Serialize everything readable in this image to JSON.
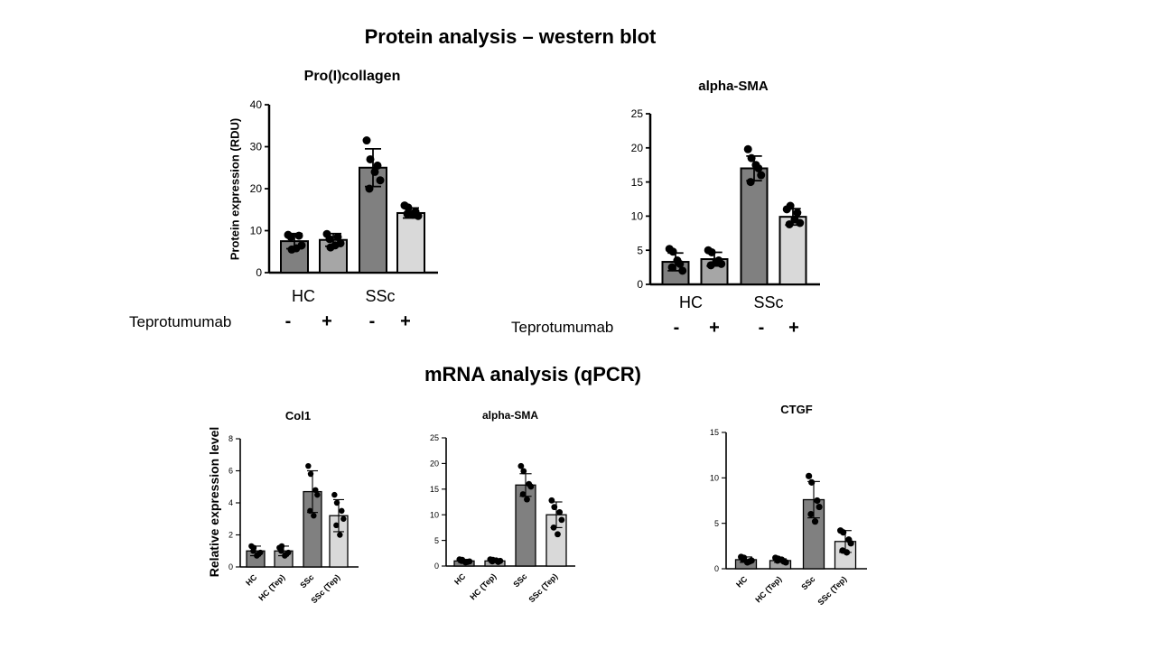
{
  "titles": {
    "protein_section": "Protein analysis – western blot",
    "mrna_section": "mRNA analysis (qPCR)"
  },
  "protein_labels": {
    "treatment": "Teprotumumab",
    "groups": [
      "HC",
      "SSc"
    ],
    "signs": [
      "-",
      "+",
      "-",
      "+"
    ]
  },
  "colors": {
    "bar_dark": "#808080",
    "bar_mid": "#a6a6a6",
    "bar_light": "#d9d9d9",
    "dot": "#000000"
  },
  "chart_data": [
    {
      "type": "bar",
      "title": "Pro(I)collagen",
      "ylabel": "Protein expression (RDU)",
      "ylim": [
        0,
        40
      ],
      "yticks": [
        0,
        10,
        20,
        30,
        40
      ],
      "categories": [
        "HC -",
        "HC +",
        "SSc -",
        "SSc +"
      ],
      "values": [
        7.5,
        7.8,
        25.0,
        14.2
      ],
      "errors": [
        1.8,
        1.5,
        4.5,
        1.2
      ],
      "points": [
        [
          9,
          5.5,
          8.8,
          6.5,
          8.5,
          5.8
        ],
        [
          9.2,
          6.0,
          8.5,
          7.0,
          8.0,
          6.5
        ],
        [
          31.5,
          27.0,
          25.5,
          22.0,
          20.0,
          24.0
        ],
        [
          16,
          15.5,
          14.5,
          13.5,
          14.0,
          13.8
        ]
      ]
    },
    {
      "type": "bar",
      "title": "alpha-SMA",
      "ylabel": "",
      "ylim": [
        0,
        25
      ],
      "yticks": [
        0,
        5,
        10,
        15,
        20,
        25
      ],
      "categories": [
        "HC -",
        "HC +",
        "SSc -",
        "SSc +"
      ],
      "values": [
        3.3,
        3.7,
        17.0,
        9.9
      ],
      "errors": [
        1.3,
        1.0,
        1.8,
        1.2
      ],
      "points": [
        [
          5.2,
          4.8,
          3.0,
          2.0,
          2.5,
          3.5
        ],
        [
          5.0,
          4.7,
          3.5,
          3.0,
          2.8,
          3.3
        ],
        [
          19.8,
          18.5,
          17.0,
          16.0,
          15.0,
          17.5
        ],
        [
          11.0,
          11.5,
          10.5,
          9.0,
          8.8,
          9.5
        ]
      ]
    },
    {
      "type": "bar",
      "title": "Col1",
      "ylabel": "Relative expression level",
      "ylim": [
        0,
        8
      ],
      "yticks": [
        0,
        2,
        4,
        6,
        8
      ],
      "categories": [
        "HC",
        "HC (Tep)",
        "SSc",
        "SSc (Tep)"
      ],
      "values": [
        1.0,
        1.0,
        4.7,
        3.2
      ],
      "errors": [
        0.3,
        0.3,
        1.3,
        1.0
      ],
      "points": [
        [
          1.3,
          1.2,
          0.8,
          0.9,
          1.0,
          0.7
        ],
        [
          1.2,
          1.3,
          0.8,
          0.9,
          1.0,
          0.7
        ],
        [
          6.3,
          5.8,
          4.8,
          4.5,
          3.5,
          3.2
        ],
        [
          4.5,
          4.0,
          3.5,
          3.0,
          2.6,
          2.0
        ]
      ]
    },
    {
      "type": "bar",
      "title": "alpha-SMA",
      "ylabel": "",
      "ylim": [
        0,
        25
      ],
      "yticks": [
        0,
        5,
        10,
        15,
        20,
        25
      ],
      "categories": [
        "HC",
        "HC (Tep)",
        "SSc",
        "SSc (Tep)"
      ],
      "values": [
        1.0,
        1.0,
        15.8,
        10.0
      ],
      "errors": [
        0.3,
        0.3,
        2.2,
        2.5
      ],
      "points": [
        [
          1.3,
          1.2,
          0.8,
          0.9,
          1.0,
          0.7
        ],
        [
          1.3,
          1.2,
          0.8,
          1.0,
          0.9,
          1.1
        ],
        [
          19.5,
          18.5,
          16.0,
          15.5,
          14.0,
          13.0
        ],
        [
          12.8,
          11.5,
          10.5,
          9.0,
          7.5,
          6.2
        ]
      ]
    },
    {
      "type": "bar",
      "title": "CTGF",
      "ylabel": "",
      "ylim": [
        0,
        15
      ],
      "yticks": [
        0,
        5,
        10,
        15
      ],
      "categories": [
        "HC",
        "HC (Tep)",
        "SSc",
        "SSc (Tep)"
      ],
      "values": [
        1.0,
        0.9,
        7.6,
        3.0
      ],
      "errors": [
        0.3,
        0.2,
        2.0,
        1.2
      ],
      "points": [
        [
          1.3,
          1.2,
          0.8,
          0.9,
          1.0,
          0.7
        ],
        [
          1.2,
          1.1,
          0.8,
          0.7,
          0.9,
          1.0
        ],
        [
          10.2,
          9.5,
          7.5,
          6.8,
          6.0,
          5.2
        ],
        [
          4.2,
          4.0,
          3.2,
          2.8,
          2.0,
          1.8
        ]
      ]
    }
  ]
}
